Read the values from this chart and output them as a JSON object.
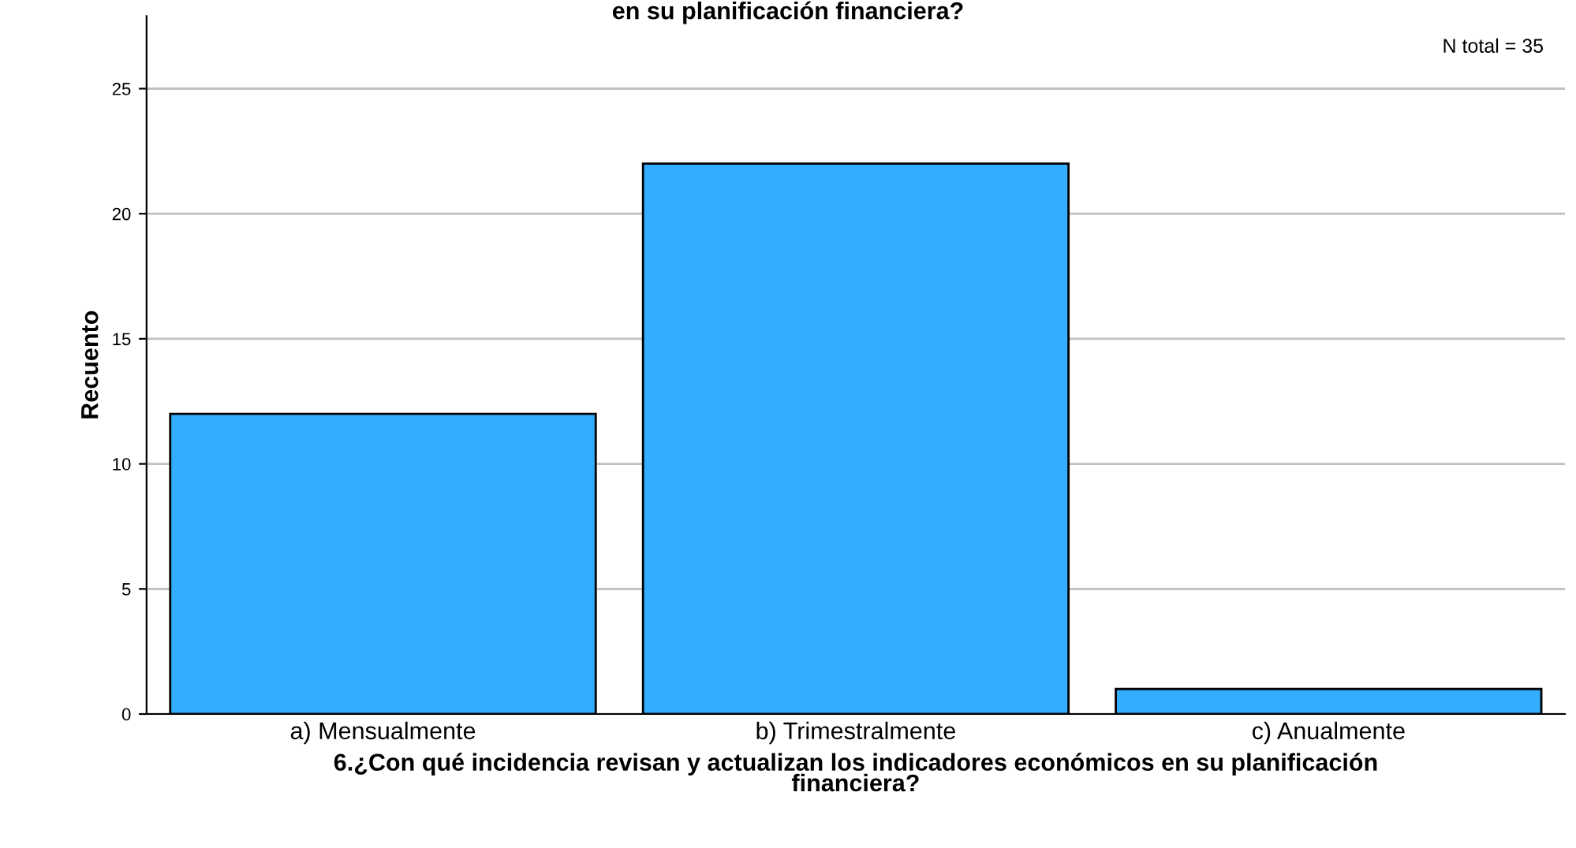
{
  "chart_data": {
    "type": "bar",
    "title": "en su planificación financiera?",
    "xlabel": "6.¿Con qué incidencia revisan y actualizan los indicadores económicos en su planificación\nfinanciera?",
    "ylabel": "Recuento",
    "categories": [
      "a) Mensualmente",
      "b) Trimestralmente",
      "c) Anualmente"
    ],
    "values": [
      12,
      22,
      1
    ],
    "color": "#33adff",
    "ylim": [
      0,
      27.9
    ],
    "yticks": [
      0,
      5,
      10,
      15,
      20,
      25
    ],
    "grid": "y",
    "annotations": [
      "N total = 35"
    ]
  }
}
